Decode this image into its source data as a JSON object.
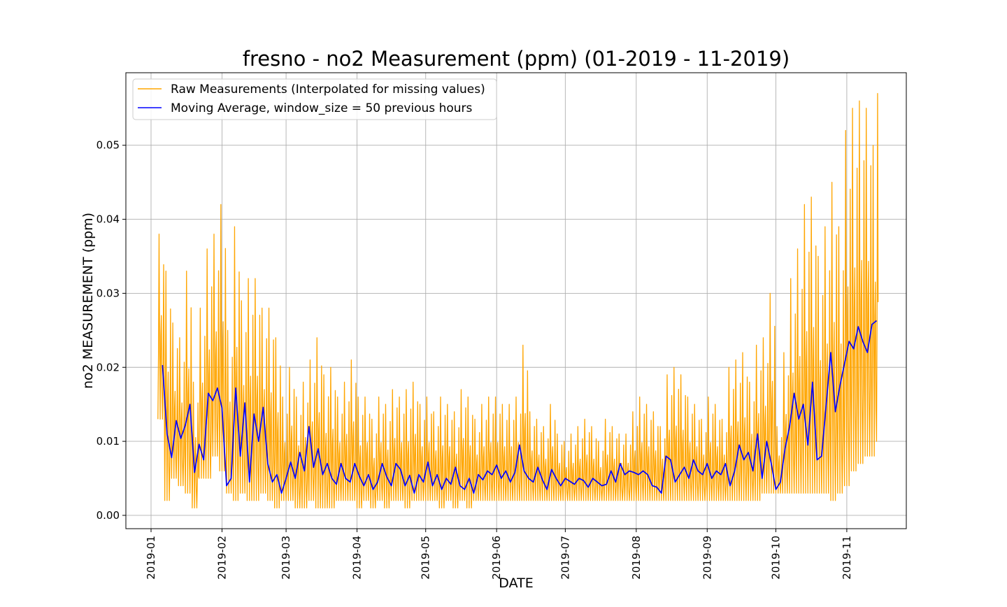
{
  "chart_data": {
    "type": "line",
    "title": "fresno - no2 Measurement (ppm) (01-2019 - 11-2019)",
    "xlabel": "DATE",
    "ylabel": "no2 MEASUREMENT (ppm)",
    "x_range": [
      "2018-12-21",
      "2019-11-27"
    ],
    "ylim": [
      -0.0018,
      0.0598
    ],
    "yticks": [
      "0.00",
      "0.01",
      "0.02",
      "0.03",
      "0.04",
      "0.05"
    ],
    "ytick_values": [
      0.0,
      0.01,
      0.02,
      0.03,
      0.04,
      0.05
    ],
    "xticks": [
      "2019-01",
      "2019-02",
      "2019-03",
      "2019-04",
      "2019-05",
      "2019-06",
      "2019-07",
      "2019-08",
      "2019-09",
      "2019-10",
      "2019-11"
    ],
    "xtick_values": [
      "2019-01-01",
      "2019-02-01",
      "2019-03-01",
      "2019-04-01",
      "2019-05-01",
      "2019-06-01",
      "2019-07-01",
      "2019-08-01",
      "2019-09-01",
      "2019-10-01",
      "2019-11-01"
    ],
    "grid": true,
    "legend_position": "top-left",
    "series": [
      {
        "name": "Raw Measurements (Interpolated for missing values)",
        "color": "#ffa500",
        "style": "hourly-envelope",
        "x": [
          "2019-01-04",
          "2019-01-07",
          "2019-01-10",
          "2019-01-13",
          "2019-01-16",
          "2019-01-19",
          "2019-01-22",
          "2019-01-25",
          "2019-01-28",
          "2019-01-31",
          "2019-02-03",
          "2019-02-06",
          "2019-02-09",
          "2019-02-12",
          "2019-02-15",
          "2019-02-18",
          "2019-02-21",
          "2019-02-24",
          "2019-02-27",
          "2019-03-02",
          "2019-03-05",
          "2019-03-08",
          "2019-03-11",
          "2019-03-14",
          "2019-03-17",
          "2019-03-20",
          "2019-03-23",
          "2019-03-26",
          "2019-03-29",
          "2019-04-01",
          "2019-04-04",
          "2019-04-07",
          "2019-04-10",
          "2019-04-13",
          "2019-04-16",
          "2019-04-19",
          "2019-04-22",
          "2019-04-25",
          "2019-04-28",
          "2019-05-01",
          "2019-05-04",
          "2019-05-07",
          "2019-05-10",
          "2019-05-13",
          "2019-05-16",
          "2019-05-19",
          "2019-05-22",
          "2019-05-25",
          "2019-05-28",
          "2019-05-31",
          "2019-06-03",
          "2019-06-06",
          "2019-06-09",
          "2019-06-12",
          "2019-06-15",
          "2019-06-18",
          "2019-06-21",
          "2019-06-24",
          "2019-06-27",
          "2019-06-30",
          "2019-07-03",
          "2019-07-06",
          "2019-07-09",
          "2019-07-12",
          "2019-07-15",
          "2019-07-18",
          "2019-07-21",
          "2019-07-24",
          "2019-07-27",
          "2019-07-30",
          "2019-08-02",
          "2019-08-05",
          "2019-08-08",
          "2019-08-11",
          "2019-08-14",
          "2019-08-17",
          "2019-08-20",
          "2019-08-23",
          "2019-08-26",
          "2019-08-29",
          "2019-09-01",
          "2019-09-04",
          "2019-09-07",
          "2019-09-10",
          "2019-09-13",
          "2019-09-16",
          "2019-09-19",
          "2019-09-22",
          "2019-09-25",
          "2019-09-28",
          "2019-10-01",
          "2019-10-04",
          "2019-10-07",
          "2019-10-10",
          "2019-10-13",
          "2019-10-16",
          "2019-10-19",
          "2019-10-22",
          "2019-10-25",
          "2019-10-28",
          "2019-10-31",
          "2019-11-03",
          "2019-11-06",
          "2019-11-09",
          "2019-11-12",
          "2019-11-14"
        ],
        "max": [
          0.038,
          0.033,
          0.026,
          0.024,
          0.033,
          0.018,
          0.028,
          0.036,
          0.038,
          0.042,
          0.025,
          0.039,
          0.029,
          0.032,
          0.032,
          0.028,
          0.028,
          0.024,
          0.016,
          0.02,
          0.016,
          0.018,
          0.021,
          0.024,
          0.019,
          0.02,
          0.016,
          0.018,
          0.021,
          0.016,
          0.016,
          0.013,
          0.016,
          0.015,
          0.017,
          0.016,
          0.017,
          0.018,
          0.015,
          0.016,
          0.014,
          0.016,
          0.015,
          0.014,
          0.017,
          0.016,
          0.013,
          0.015,
          0.016,
          0.016,
          0.015,
          0.015,
          0.016,
          0.023,
          0.014,
          0.013,
          0.012,
          0.015,
          0.011,
          0.01,
          0.011,
          0.012,
          0.013,
          0.012,
          0.01,
          0.013,
          0.012,
          0.011,
          0.011,
          0.014,
          0.016,
          0.015,
          0.014,
          0.012,
          0.019,
          0.02,
          0.019,
          0.016,
          0.015,
          0.013,
          0.016,
          0.015,
          0.013,
          0.02,
          0.021,
          0.022,
          0.018,
          0.023,
          0.024,
          0.03,
          0.012,
          0.022,
          0.032,
          0.036,
          0.042,
          0.043,
          0.035,
          0.039,
          0.045,
          0.039,
          0.052,
          0.055,
          0.056,
          0.055,
          0.05,
          0.057
        ],
        "min": [
          0.013,
          0.002,
          0.005,
          0.004,
          0.003,
          0.001,
          0.005,
          0.005,
          0.008,
          0.006,
          0.003,
          0.002,
          0.003,
          0.002,
          0.002,
          0.003,
          0.002,
          0.001,
          0.002,
          0.002,
          0.001,
          0.001,
          0.002,
          0.001,
          0.001,
          0.001,
          0.002,
          0.002,
          0.002,
          0.001,
          0.002,
          0.001,
          0.002,
          0.001,
          0.002,
          0.002,
          0.001,
          0.002,
          0.002,
          0.002,
          0.002,
          0.001,
          0.002,
          0.001,
          0.002,
          0.001,
          0.002,
          0.002,
          0.002,
          0.002,
          0.002,
          0.002,
          0.002,
          0.002,
          0.002,
          0.002,
          0.002,
          0.002,
          0.002,
          0.002,
          0.002,
          0.002,
          0.002,
          0.002,
          0.002,
          0.002,
          0.002,
          0.002,
          0.002,
          0.002,
          0.002,
          0.002,
          0.002,
          0.002,
          0.002,
          0.002,
          0.002,
          0.002,
          0.002,
          0.002,
          0.002,
          0.002,
          0.002,
          0.002,
          0.002,
          0.002,
          0.002,
          0.002,
          0.003,
          0.003,
          0.003,
          0.003,
          0.003,
          0.003,
          0.003,
          0.003,
          0.003,
          0.003,
          0.002,
          0.003,
          0.004,
          0.006,
          0.007,
          0.008,
          0.008,
          0.01
        ]
      },
      {
        "name": "Moving Average, window_size = 50 previous hours",
        "color": "#0000ff",
        "x": [
          "2019-01-06",
          "2019-01-08",
          "2019-01-10",
          "2019-01-12",
          "2019-01-14",
          "2019-01-16",
          "2019-01-18",
          "2019-01-20",
          "2019-01-22",
          "2019-01-24",
          "2019-01-26",
          "2019-01-28",
          "2019-01-30",
          "2019-02-01",
          "2019-02-03",
          "2019-02-05",
          "2019-02-07",
          "2019-02-09",
          "2019-02-11",
          "2019-02-13",
          "2019-02-15",
          "2019-02-17",
          "2019-02-19",
          "2019-02-21",
          "2019-02-23",
          "2019-02-25",
          "2019-02-27",
          "2019-03-01",
          "2019-03-03",
          "2019-03-05",
          "2019-03-07",
          "2019-03-09",
          "2019-03-11",
          "2019-03-13",
          "2019-03-15",
          "2019-03-17",
          "2019-03-19",
          "2019-03-21",
          "2019-03-23",
          "2019-03-25",
          "2019-03-27",
          "2019-03-29",
          "2019-03-31",
          "2019-04-02",
          "2019-04-04",
          "2019-04-06",
          "2019-04-08",
          "2019-04-10",
          "2019-04-12",
          "2019-04-14",
          "2019-04-16",
          "2019-04-18",
          "2019-04-20",
          "2019-04-22",
          "2019-04-24",
          "2019-04-26",
          "2019-04-28",
          "2019-04-30",
          "2019-05-02",
          "2019-05-04",
          "2019-05-06",
          "2019-05-08",
          "2019-05-10",
          "2019-05-12",
          "2019-05-14",
          "2019-05-16",
          "2019-05-18",
          "2019-05-20",
          "2019-05-22",
          "2019-05-24",
          "2019-05-26",
          "2019-05-28",
          "2019-05-30",
          "2019-06-01",
          "2019-06-03",
          "2019-06-05",
          "2019-06-07",
          "2019-06-09",
          "2019-06-11",
          "2019-06-13",
          "2019-06-15",
          "2019-06-17",
          "2019-06-19",
          "2019-06-21",
          "2019-06-23",
          "2019-06-25",
          "2019-06-27",
          "2019-06-29",
          "2019-07-01",
          "2019-07-03",
          "2019-07-05",
          "2019-07-07",
          "2019-07-09",
          "2019-07-11",
          "2019-07-13",
          "2019-07-15",
          "2019-07-17",
          "2019-07-19",
          "2019-07-21",
          "2019-07-23",
          "2019-07-25",
          "2019-07-27",
          "2019-07-29",
          "2019-07-31",
          "2019-08-02",
          "2019-08-04",
          "2019-08-06",
          "2019-08-08",
          "2019-08-10",
          "2019-08-12",
          "2019-08-14",
          "2019-08-16",
          "2019-08-18",
          "2019-08-20",
          "2019-08-22",
          "2019-08-24",
          "2019-08-26",
          "2019-08-28",
          "2019-08-30",
          "2019-09-01",
          "2019-09-03",
          "2019-09-05",
          "2019-09-07",
          "2019-09-09",
          "2019-09-11",
          "2019-09-13",
          "2019-09-15",
          "2019-09-17",
          "2019-09-19",
          "2019-09-21",
          "2019-09-23",
          "2019-09-25",
          "2019-09-27",
          "2019-09-29",
          "2019-10-01",
          "2019-10-03",
          "2019-10-05",
          "2019-10-07",
          "2019-10-09",
          "2019-10-11",
          "2019-10-13",
          "2019-10-15",
          "2019-10-17",
          "2019-10-19",
          "2019-10-21",
          "2019-10-23",
          "2019-10-25",
          "2019-10-27",
          "2019-10-29",
          "2019-10-31",
          "2019-11-02",
          "2019-11-04",
          "2019-11-06",
          "2019-11-08",
          "2019-11-10",
          "2019-11-12",
          "2019-11-14"
        ],
        "values": [
          0.0203,
          0.011,
          0.0078,
          0.0128,
          0.0104,
          0.0122,
          0.015,
          0.0058,
          0.0096,
          0.0075,
          0.0165,
          0.0155,
          0.0172,
          0.0145,
          0.004,
          0.005,
          0.0172,
          0.008,
          0.0152,
          0.0045,
          0.0137,
          0.01,
          0.0146,
          0.007,
          0.0045,
          0.0055,
          0.003,
          0.005,
          0.0072,
          0.005,
          0.0085,
          0.006,
          0.012,
          0.0065,
          0.009,
          0.0055,
          0.007,
          0.005,
          0.0042,
          0.007,
          0.005,
          0.0045,
          0.007,
          0.0053,
          0.004,
          0.0055,
          0.0035,
          0.0045,
          0.007,
          0.0052,
          0.004,
          0.007,
          0.0062,
          0.004,
          0.0054,
          0.003,
          0.0055,
          0.0045,
          0.0072,
          0.004,
          0.0055,
          0.0035,
          0.005,
          0.0042,
          0.0065,
          0.004,
          0.0035,
          0.005,
          0.003,
          0.0055,
          0.0048,
          0.006,
          0.0055,
          0.0068,
          0.005,
          0.006,
          0.0045,
          0.0058,
          0.0095,
          0.006,
          0.005,
          0.0045,
          0.0065,
          0.0048,
          0.0035,
          0.0062,
          0.005,
          0.004,
          0.005,
          0.0046,
          0.0042,
          0.005,
          0.0047,
          0.0038,
          0.005,
          0.0045,
          0.004,
          0.0042,
          0.006,
          0.0045,
          0.007,
          0.0055,
          0.006,
          0.0058,
          0.0055,
          0.006,
          0.0055,
          0.004,
          0.0038,
          0.003,
          0.008,
          0.0075,
          0.0045,
          0.0055,
          0.0065,
          0.005,
          0.0075,
          0.006,
          0.0055,
          0.007,
          0.005,
          0.006,
          0.0055,
          0.007,
          0.004,
          0.006,
          0.0095,
          0.0075,
          0.0085,
          0.006,
          0.011,
          0.005,
          0.01,
          0.007,
          0.0035,
          0.0045,
          0.009,
          0.012,
          0.0165,
          0.013,
          0.015,
          0.0095,
          0.018,
          0.0075,
          0.008,
          0.015,
          0.022,
          0.014,
          0.0175,
          0.0205,
          0.0235,
          0.0225,
          0.0255,
          0.0235,
          0.022,
          0.0258,
          0.0263
        ]
      }
    ]
  }
}
